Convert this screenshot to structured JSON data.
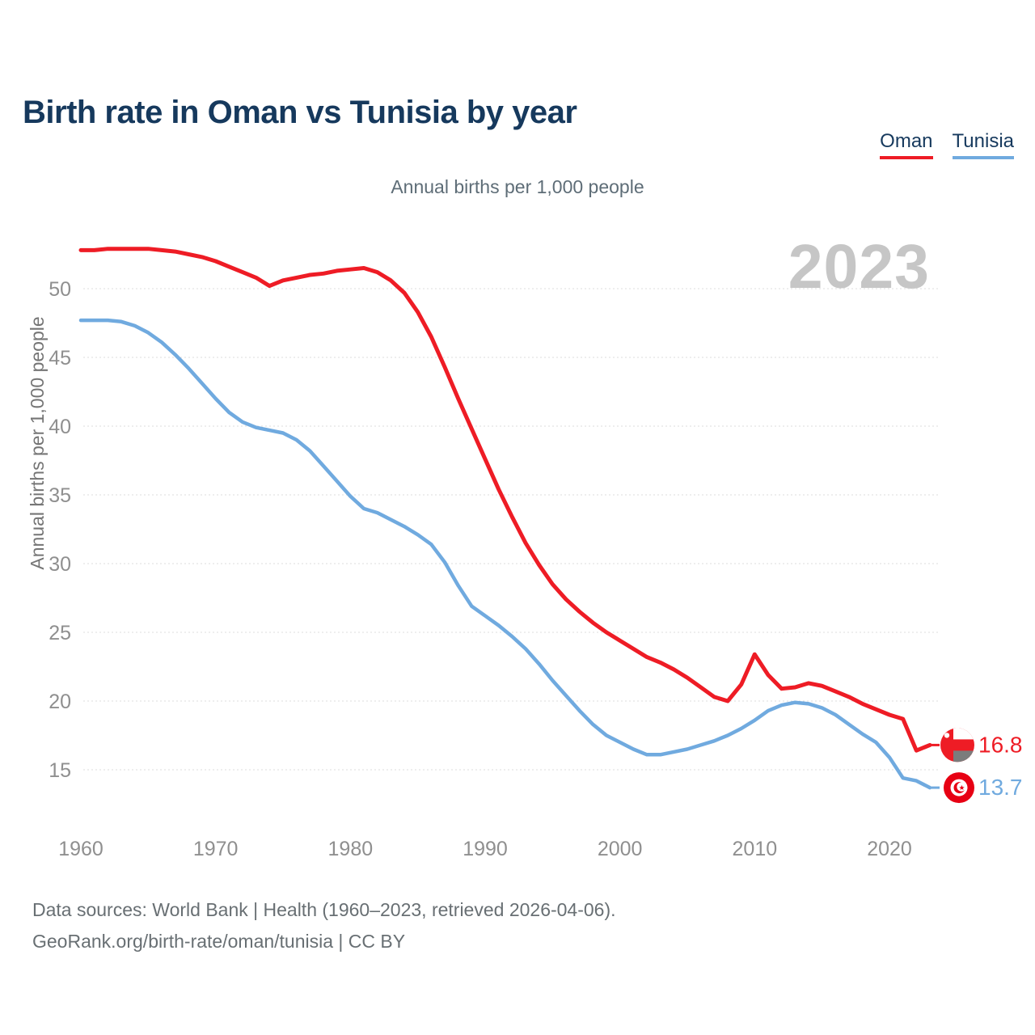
{
  "title": "Birth rate in Oman vs Tunisia by year",
  "subtitle": "Annual births per 1,000 people",
  "watermark": "2023",
  "legend": [
    {
      "label": "Oman",
      "color": "#ee1c25"
    },
    {
      "label": "Tunisia",
      "color": "#70aadf"
    }
  ],
  "y_axis": {
    "label": "Annual births per 1,000 people",
    "ticks": [
      15,
      20,
      25,
      30,
      35,
      40,
      45,
      50
    ]
  },
  "x_axis": {
    "ticks": [
      1960,
      1970,
      1980,
      1990,
      2000,
      2010,
      2020
    ]
  },
  "end_labels": [
    {
      "series": "Oman",
      "value": 16.8,
      "color": "#ee1c25",
      "flag_icon": "oman-flag-icon"
    },
    {
      "series": "Tunisia",
      "value": 13.7,
      "color": "#70aadf",
      "flag_icon": "tunisia-flag-icon"
    }
  ],
  "footer": {
    "line1": "Data sources: World Bank | Health (1960–2023, retrieved 2026-04-06).",
    "line2": "GeoRank.org/birth-rate/oman/tunisia | CC BY"
  },
  "chart_data": {
    "type": "line",
    "title": "Birth rate in Oman vs Tunisia by year",
    "xlabel": "",
    "ylabel": "Annual births per 1,000 people",
    "xlim": [
      1960,
      2023
    ],
    "ylim": [
      12,
      54
    ],
    "grid": true,
    "legend_position": "top-right",
    "x": [
      1960,
      1961,
      1962,
      1963,
      1964,
      1965,
      1966,
      1967,
      1968,
      1969,
      1970,
      1971,
      1972,
      1973,
      1974,
      1975,
      1976,
      1977,
      1978,
      1979,
      1980,
      1981,
      1982,
      1983,
      1984,
      1985,
      1986,
      1987,
      1988,
      1989,
      1990,
      1991,
      1992,
      1993,
      1994,
      1995,
      1996,
      1997,
      1998,
      1999,
      2000,
      2001,
      2002,
      2003,
      2004,
      2005,
      2006,
      2007,
      2008,
      2009,
      2010,
      2011,
      2012,
      2013,
      2014,
      2015,
      2016,
      2017,
      2018,
      2019,
      2020,
      2021,
      2022,
      2023
    ],
    "series": [
      {
        "name": "Oman",
        "color": "#ee1c25",
        "values": [
          52.8,
          52.8,
          52.9,
          52.9,
          52.9,
          52.9,
          52.8,
          52.7,
          52.5,
          52.3,
          52.0,
          51.6,
          51.2,
          50.8,
          50.2,
          50.6,
          50.8,
          51.0,
          51.1,
          51.3,
          51.4,
          51.5,
          51.2,
          50.6,
          49.7,
          48.3,
          46.5,
          44.3,
          42.0,
          39.8,
          37.6,
          35.4,
          33.4,
          31.5,
          29.9,
          28.5,
          27.4,
          26.5,
          25.7,
          25.0,
          24.4,
          23.8,
          23.2,
          22.8,
          22.3,
          21.7,
          21.0,
          20.3,
          20.0,
          21.2,
          23.4,
          21.9,
          20.9,
          21.0,
          21.3,
          21.1,
          20.7,
          20.3,
          19.8,
          19.4,
          19.0,
          18.7,
          16.4,
          16.8
        ]
      },
      {
        "name": "Tunisia",
        "color": "#70aadf",
        "values": [
          47.7,
          47.7,
          47.7,
          47.6,
          47.3,
          46.8,
          46.1,
          45.2,
          44.2,
          43.1,
          42.0,
          41.0,
          40.3,
          39.9,
          39.7,
          39.5,
          39.0,
          38.2,
          37.1,
          36.0,
          34.9,
          34.0,
          33.7,
          33.2,
          32.7,
          32.1,
          31.4,
          30.1,
          28.4,
          26.9,
          26.2,
          25.5,
          24.7,
          23.8,
          22.7,
          21.5,
          20.4,
          19.3,
          18.3,
          17.5,
          17.0,
          16.5,
          16.1,
          16.1,
          16.3,
          16.5,
          16.8,
          17.1,
          17.5,
          18.0,
          18.6,
          19.3,
          19.7,
          19.9,
          19.8,
          19.5,
          19.0,
          18.3,
          17.6,
          17.0,
          15.9,
          14.4,
          14.2,
          13.7
        ]
      }
    ]
  }
}
